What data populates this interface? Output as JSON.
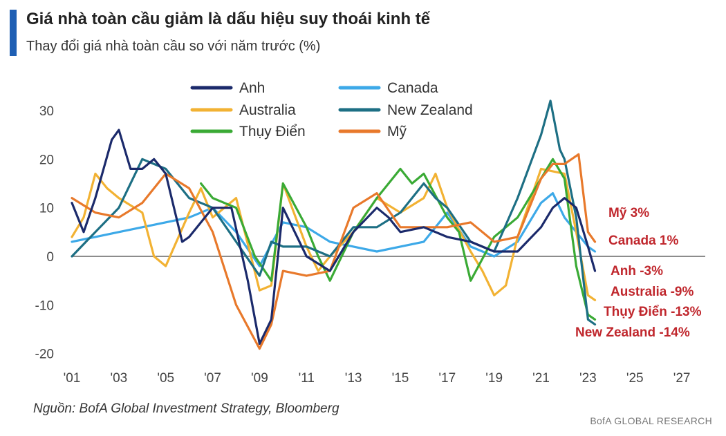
{
  "chart_data": {
    "type": "line",
    "title": "Giá nhà toàn cầu giảm là dấu hiệu suy thoái kinh tế",
    "subtitle": "Thay đổi giá nhà toàn cầu so với năm trước (%)",
    "source": "Nguồn: BofA Global Investment Strategy, Bloomberg",
    "brand": "BofA GLOBAL RESEARCH",
    "xlabel": "",
    "ylabel": "",
    "xlim": [
      2001,
      2028
    ],
    "ylim": [
      -22,
      32
    ],
    "x_ticks": [
      2001,
      2003,
      2005,
      2007,
      2009,
      2011,
      2013,
      2015,
      2017,
      2019,
      2021,
      2023,
      2025,
      2027
    ],
    "x_tick_labels": [
      "'01",
      "'03",
      "'05",
      "'07",
      "'09",
      "'11",
      "'13",
      "'15",
      "'17",
      "'19",
      "'21",
      "'23",
      "'25",
      "'27"
    ],
    "y_ticks": [
      30,
      20,
      10,
      0,
      -10,
      -20
    ],
    "y_tick_labels": [
      "30",
      "20",
      "10",
      "0",
      "-10",
      "-20"
    ],
    "legend_position": "top-center",
    "series": [
      {
        "name": "Canada",
        "color": "#3da9e8",
        "end_label": "Canada 1%",
        "x": [
          2001,
          2002,
          2003,
          2004,
          2005,
          2006,
          2007,
          2008,
          2009,
          2010,
          2011,
          2012,
          2013,
          2014,
          2015,
          2016,
          2017,
          2018,
          2019,
          2020,
          2021,
          2021.5,
          2022,
          2022.5,
          2023,
          2023.3
        ],
        "y": [
          3,
          4,
          5,
          6,
          7,
          8,
          10,
          5,
          -2,
          7,
          6,
          3,
          2,
          1,
          2,
          3,
          9,
          2,
          0,
          3,
          11,
          13,
          8,
          5,
          2,
          1
        ]
      },
      {
        "name": "Australia",
        "color": "#f2b233",
        "end_label": "Australia -9%",
        "x": [
          2001,
          2001.5,
          2002,
          2002.5,
          2003,
          2004,
          2004.5,
          2005,
          2006,
          2006.5,
          2007,
          2008,
          2009,
          2009.5,
          2010,
          2011,
          2011.5,
          2012,
          2013,
          2014,
          2015,
          2016,
          2016.5,
          2017,
          2018,
          2018.5,
          2019,
          2019.5,
          2020,
          2021,
          2022,
          2022.5,
          2023,
          2023.3
        ],
        "y": [
          4,
          8,
          17,
          14,
          12,
          9,
          0,
          -2,
          9,
          14,
          8,
          12,
          -7,
          -6,
          15,
          2,
          -3,
          0,
          5,
          12,
          9,
          12,
          17,
          10,
          1,
          -3,
          -8,
          -6,
          4,
          18,
          17,
          5,
          -8,
          -9
        ]
      },
      {
        "name": "Thụy Điển",
        "color": "#3aaa35",
        "end_label": "Thụy Điển -13%",
        "x": [
          2006.5,
          2007,
          2008,
          2008.8,
          2009.5,
          2010,
          2011,
          2011.5,
          2012,
          2013,
          2014,
          2015,
          2015.5,
          2016,
          2017,
          2017.5,
          2018,
          2019,
          2020,
          2021,
          2021.5,
          2022,
          2022.5,
          2023,
          2023.3
        ],
        "y": [
          15,
          12,
          10,
          0,
          -5,
          15,
          6,
          0,
          -5,
          5,
          12,
          18,
          15,
          17,
          8,
          5,
          -5,
          4,
          8,
          16,
          20,
          16,
          -2,
          -12,
          -13
        ]
      },
      {
        "name": "New Zealand",
        "color": "#1d6f84",
        "end_label": "New Zealand -14%",
        "x": [
          2001,
          2002,
          2003,
          2004,
          2005,
          2006,
          2007,
          2008,
          2009,
          2009.5,
          2010,
          2011,
          2012,
          2013,
          2014,
          2015,
          2016,
          2016.5,
          2017,
          2018,
          2019,
          2020,
          2021,
          2021.4,
          2021.8,
          2022,
          2022.5,
          2023,
          2023.3
        ],
        "y": [
          0,
          5,
          10,
          20,
          18,
          12,
          10,
          3,
          -4,
          3,
          2,
          2,
          0,
          6,
          6,
          9,
          15,
          12,
          10,
          3,
          1,
          12,
          25,
          32,
          22,
          20,
          8,
          -13,
          -14
        ]
      },
      {
        "name": "Mỹ",
        "color": "#e8792b",
        "end_label": "Mỹ 3%",
        "x": [
          2001,
          2002,
          2003,
          2004,
          2005,
          2006,
          2007,
          2008,
          2009,
          2009.5,
          2010,
          2011,
          2012,
          2013,
          2014,
          2015,
          2016,
          2017,
          2018,
          2019,
          2020,
          2021,
          2021.5,
          2022,
          2022.6,
          2023,
          2023.3
        ],
        "y": [
          12,
          9,
          8,
          11,
          17,
          14,
          5,
          -10,
          -19,
          -14,
          -3,
          -4,
          -3,
          10,
          13,
          6,
          6,
          6,
          7,
          3,
          4,
          16,
          19,
          19,
          21,
          5,
          3
        ]
      },
      {
        "name": "Anh",
        "color": "#1b2a6b",
        "end_label": "Anh -3%",
        "x": [
          2001,
          2001.5,
          2002,
          2002.7,
          2003,
          2003.5,
          2004,
          2004.5,
          2005,
          2005.7,
          2006,
          2007,
          2007.8,
          2008.5,
          2009,
          2009.5,
          2010,
          2011,
          2012,
          2013,
          2014,
          2014.5,
          2015,
          2016,
          2017,
          2018,
          2019,
          2020,
          2021,
          2021.5,
          2022,
          2022.5,
          2023,
          2023.3
        ],
        "y": [
          11,
          5,
          12,
          24,
          26,
          18,
          18,
          20,
          17,
          3,
          4,
          10,
          10,
          -5,
          -18,
          -13,
          10,
          0,
          -3,
          5,
          10,
          8,
          5,
          6,
          4,
          3,
          1,
          1,
          6,
          10,
          12,
          10,
          2,
          -3
        ]
      }
    ],
    "legend_layout": [
      [
        "Anh",
        "Canada"
      ],
      [
        "Australia",
        "New Zealand"
      ],
      [
        "Thụy Điển",
        "Mỹ"
      ]
    ],
    "end_labels_order": [
      "Mỹ 3%",
      "Canada 1%",
      "Anh -3%",
      "Australia -9%",
      "Thụy Điển -13%",
      "New Zealand -14%"
    ]
  }
}
